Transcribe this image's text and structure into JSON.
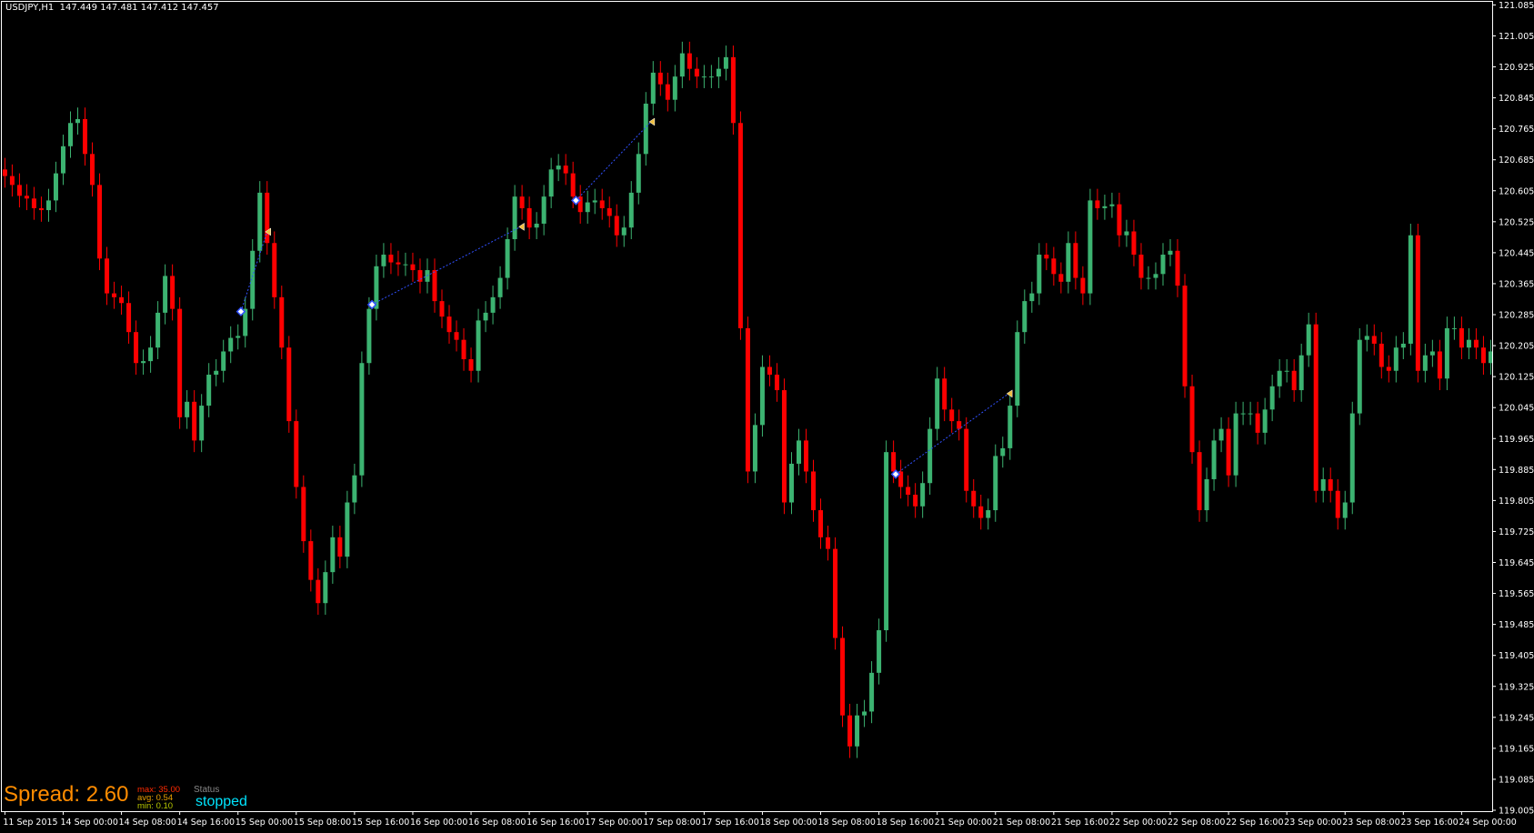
{
  "header": {
    "symbol": "USDJPY,H1",
    "ohlc": "147.449 147.481 147.412 147.457"
  },
  "spread": {
    "label": "Spread: 2.60",
    "max": "max: ",
    "max_val": "35.00",
    "avg": "avg: ",
    "avg_val": "0.54",
    "min": "min: ",
    "min_val": "0.10",
    "status_label": "Status",
    "status_value": "stopped"
  },
  "colors": {
    "background": "#000000",
    "bull": "#3cb371",
    "bear": "#ff0000",
    "axis": "#ffffff",
    "trade_line": "#3050ff",
    "spread": "#ff8c00",
    "max": "#ff2a00",
    "avg": "#e8a000",
    "min": "#b8c800",
    "status": "#00e5ff"
  },
  "chart_data": {
    "type": "candlestick",
    "timeframe": "H1",
    "ylim": [
      119.005,
      121.085
    ],
    "price_ticks": [
      "121.085",
      "121.005",
      "120.925",
      "120.845",
      "120.765",
      "120.685",
      "120.605",
      "120.525",
      "120.445",
      "120.365",
      "120.285",
      "120.205",
      "120.125",
      "120.045",
      "119.965",
      "119.885",
      "119.805",
      "119.725",
      "119.645",
      "119.565",
      "119.485",
      "119.405",
      "119.325",
      "119.245",
      "119.165",
      "119.085",
      "119.005"
    ],
    "time_ticks": [
      "11 Sep 2015",
      "14 Sep 00:00",
      "14 Sep 08:00",
      "14 Sep 16:00",
      "15 Sep 00:00",
      "15 Sep 08:00",
      "15 Sep 16:00",
      "16 Sep 00:00",
      "16 Sep 08:00",
      "16 Sep 16:00",
      "17 Sep 00:00",
      "17 Sep 08:00",
      "17 Sep 16:00",
      "18 Sep 00:00",
      "18 Sep 08:00",
      "18 Sep 16:00",
      "21 Sep 00:00",
      "21 Sep 08:00",
      "21 Sep 16:00",
      "22 Sep 00:00",
      "22 Sep 08:00",
      "22 Sep 16:00",
      "23 Sep 00:00",
      "23 Sep 08:00",
      "23 Sep 16:00",
      "24 Sep 00:00"
    ],
    "bars_per_time_tick": 8,
    "first_open": 120.66,
    "close": [
      120.643,
      120.62,
      120.592,
      120.585,
      120.56,
      120.555,
      120.58,
      120.65,
      120.72,
      120.78,
      120.79,
      120.7,
      120.62,
      120.43,
      120.34,
      120.33,
      120.315,
      120.24,
      120.16,
      120.165,
      120.2,
      120.29,
      120.385,
      120.3,
      120.02,
      120.06,
      119.96,
      120.05,
      120.13,
      120.14,
      120.19,
      120.225,
      120.23,
      120.3,
      120.45,
      120.6,
      120.47,
      120.33,
      120.2,
      120.01,
      119.84,
      119.7,
      119.6,
      119.54,
      119.62,
      119.71,
      119.66,
      119.8,
      119.87,
      120.16,
      120.3,
      120.41,
      120.44,
      120.42,
      120.415,
      120.415,
      120.4,
      120.37,
      120.4,
      120.32,
      120.28,
      120.24,
      120.22,
      120.17,
      120.14,
      120.27,
      120.29,
      120.33,
      120.38,
      120.48,
      120.59,
      120.56,
      120.51,
      120.52,
      120.59,
      120.66,
      120.67,
      120.65,
      120.59,
      120.55,
      120.575,
      120.58,
      120.56,
      120.54,
      120.49,
      120.51,
      120.6,
      120.7,
      120.83,
      120.91,
      120.88,
      120.84,
      120.9,
      120.96,
      120.92,
      120.9,
      120.9,
      120.9,
      120.92,
      120.95,
      120.78,
      120.25,
      119.88,
      120.0,
      120.15,
      120.13,
      120.09,
      119.8,
      119.9,
      119.96,
      119.88,
      119.78,
      119.71,
      119.68,
      119.45,
      119.25,
      119.17,
      119.25,
      119.26,
      119.36,
      119.47,
      119.93,
      119.88,
      119.84,
      119.82,
      119.79,
      119.85,
      119.99,
      120.12,
      120.04,
      120.01,
      119.99,
      119.83,
      119.79,
      119.76,
      119.78,
      119.92,
      119.94,
      120.05,
      120.24,
      120.32,
      120.34,
      120.44,
      120.43,
      120.39,
      120.37,
      120.47,
      120.38,
      120.34,
      120.58,
      120.56,
      120.565,
      120.57,
      120.49,
      120.5,
      120.44,
      120.38,
      120.38,
      120.39,
      120.44,
      120.45,
      120.36,
      120.1,
      119.93,
      119.78,
      119.86,
      119.96,
      119.99,
      119.87,
      120.03,
      120.03,
      120.03,
      119.98,
      120.04,
      120.1,
      120.14,
      120.14,
      120.09,
      120.18,
      120.26,
      119.83,
      119.86,
      119.83,
      119.76,
      119.8,
      120.03,
      120.22,
      120.23,
      120.21,
      120.15,
      120.14,
      120.2,
      120.21,
      120.49,
      120.14,
      120.18,
      120.19,
      120.12,
      120.25,
      120.25,
      120.2,
      120.22,
      120.2,
      120.16,
      120.19
    ],
    "trades": [
      {
        "open_bar": 32.4,
        "open_price": 120.293,
        "close_bar": 36.0,
        "close_price": 120.499
      },
      {
        "open_bar": 50.4,
        "open_price": 120.311,
        "close_bar": 70.8,
        "close_price": 120.512
      },
      {
        "open_bar": 78.4,
        "open_price": 120.58,
        "close_bar": 88.7,
        "close_price": 120.783
      },
      {
        "open_bar": 122.3,
        "open_price": 119.873,
        "close_bar": 137.8,
        "close_price": 120.081
      }
    ]
  }
}
